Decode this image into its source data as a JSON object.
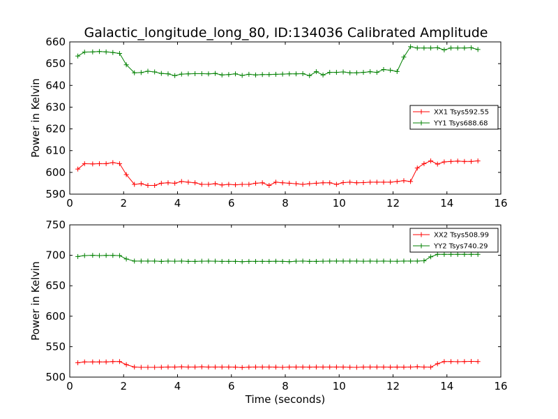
{
  "figure_title": "Galactic_longitude_long_80, ID:134036 Calibrated Amplitude",
  "colors": {
    "red": "#ff0000",
    "green": "#008000",
    "axis": "#000000",
    "background": "#ffffff"
  },
  "chart_data": [
    {
      "type": "line",
      "title": "Galactic_longitude_long_80, ID:134036 Calibrated Amplitude",
      "xlabel": "",
      "ylabel": "Power in Kelvin",
      "xlim": [
        0,
        16
      ],
      "ylim": [
        590,
        660
      ],
      "xticks": [
        0,
        2,
        4,
        6,
        8,
        10,
        12,
        14,
        16
      ],
      "yticks": [
        590,
        600,
        610,
        620,
        630,
        640,
        650,
        660
      ],
      "grid": false,
      "legend_position": "center-right",
      "x": [
        0.3,
        0.55,
        0.85,
        1.1,
        1.35,
        1.6,
        1.85,
        2.1,
        2.4,
        2.65,
        2.9,
        3.15,
        3.4,
        3.65,
        3.9,
        4.15,
        4.4,
        4.65,
        4.9,
        5.15,
        5.4,
        5.65,
        5.9,
        6.15,
        6.4,
        6.65,
        6.9,
        7.15,
        7.4,
        7.65,
        7.9,
        8.15,
        8.4,
        8.65,
        8.9,
        9.15,
        9.4,
        9.65,
        9.9,
        10.15,
        10.4,
        10.65,
        10.9,
        11.15,
        11.4,
        11.65,
        11.9,
        12.15,
        12.4,
        12.65,
        12.9,
        13.15,
        13.4,
        13.65,
        13.9,
        14.15,
        14.4,
        14.65,
        14.9,
        15.15
      ],
      "series": [
        {
          "name": "XX1 Tsys592.55",
          "color": "#ff0000",
          "values": [
            601.5,
            604.0,
            603.9,
            604.0,
            604.0,
            604.5,
            604.0,
            599.0,
            594.5,
            594.8,
            594.0,
            594.0,
            595.0,
            595.2,
            595.0,
            595.8,
            595.5,
            595.2,
            594.5,
            594.5,
            594.8,
            594.2,
            594.5,
            594.3,
            594.5,
            594.5,
            595.0,
            595.2,
            594.0,
            595.5,
            595.2,
            595.0,
            594.8,
            594.5,
            594.8,
            595.0,
            595.2,
            595.2,
            594.5,
            595.3,
            595.5,
            595.2,
            595.3,
            595.5,
            595.5,
            595.5,
            595.5,
            595.8,
            596.2,
            595.8,
            602.0,
            604.0,
            605.3,
            603.8,
            604.8,
            605.0,
            605.2,
            605.0,
            605.0,
            605.3
          ]
        },
        {
          "name": "YY1 Tsys688.68",
          "color": "#008000",
          "values": [
            653.5,
            655.3,
            655.4,
            655.6,
            655.4,
            655.1,
            654.7,
            649.5,
            645.8,
            645.9,
            646.5,
            646.2,
            645.5,
            645.3,
            644.5,
            645.2,
            645.3,
            645.4,
            645.4,
            645.3,
            645.5,
            644.8,
            645.0,
            645.3,
            644.6,
            645.1,
            644.8,
            645.0,
            645.0,
            645.1,
            645.2,
            645.3,
            645.3,
            645.4,
            644.5,
            646.3,
            644.8,
            646.0,
            646.0,
            646.2,
            645.8,
            645.8,
            646.0,
            646.3,
            646.0,
            647.3,
            647.0,
            646.4,
            653.0,
            657.8,
            657.2,
            657.2,
            657.2,
            657.3,
            656.3,
            657.2,
            657.2,
            657.2,
            657.3,
            656.5
          ]
        }
      ]
    },
    {
      "type": "line",
      "title": "",
      "xlabel": "Time (seconds)",
      "ylabel": "Power in Kelvin",
      "xlim": [
        0,
        16
      ],
      "ylim": [
        500,
        750
      ],
      "xticks": [
        0,
        2,
        4,
        6,
        8,
        10,
        12,
        14,
        16
      ],
      "yticks": [
        500,
        550,
        600,
        650,
        700,
        750
      ],
      "grid": false,
      "legend_position": "top-right",
      "x": [
        0.3,
        0.55,
        0.85,
        1.1,
        1.35,
        1.6,
        1.85,
        2.1,
        2.4,
        2.65,
        2.9,
        3.15,
        3.4,
        3.65,
        3.9,
        4.15,
        4.4,
        4.65,
        4.9,
        5.15,
        5.4,
        5.65,
        5.9,
        6.15,
        6.4,
        6.65,
        6.9,
        7.15,
        7.4,
        7.65,
        7.9,
        8.15,
        8.4,
        8.65,
        8.9,
        9.15,
        9.4,
        9.65,
        9.9,
        10.15,
        10.4,
        10.65,
        10.9,
        11.15,
        11.4,
        11.65,
        11.9,
        12.15,
        12.4,
        12.65,
        12.9,
        13.15,
        13.4,
        13.65,
        13.9,
        14.15,
        14.4,
        14.65,
        14.9,
        15.15
      ],
      "series": [
        {
          "name": "XX2 Tsys508.99",
          "color": "#ff0000",
          "values": [
            523.5,
            525.0,
            525.0,
            525.0,
            525.0,
            525.5,
            525.5,
            520.5,
            516.5,
            516.0,
            516.0,
            516.0,
            516.2,
            516.5,
            516.5,
            516.8,
            516.5,
            516.5,
            516.8,
            516.5,
            516.5,
            516.5,
            516.5,
            516.3,
            515.8,
            516.3,
            516.5,
            516.5,
            516.5,
            516.3,
            516.0,
            516.5,
            516.5,
            516.5,
            516.3,
            516.5,
            516.5,
            516.5,
            516.5,
            516.5,
            516.2,
            516.0,
            516.5,
            516.5,
            516.5,
            516.5,
            516.3,
            516.5,
            516.3,
            516.5,
            517.0,
            516.5,
            516.3,
            522.0,
            525.5,
            525.5,
            525.3,
            525.5,
            525.8,
            525.5
          ]
        },
        {
          "name": "YY2 Tsys740.29",
          "color": "#008000",
          "values": [
            698.0,
            699.5,
            700.0,
            699.5,
            699.8,
            699.8,
            699.5,
            694.0,
            690.5,
            690.5,
            690.5,
            690.5,
            690.0,
            690.5,
            690.3,
            690.5,
            690.0,
            690.0,
            690.3,
            690.5,
            690.3,
            690.0,
            690.0,
            690.0,
            689.5,
            690.0,
            690.0,
            690.0,
            690.0,
            690.2,
            690.0,
            689.5,
            690.3,
            690.5,
            690.0,
            690.0,
            690.3,
            690.5,
            690.5,
            690.5,
            690.5,
            690.5,
            690.3,
            690.5,
            690.3,
            690.5,
            690.3,
            690.2,
            690.5,
            690.5,
            690.5,
            691.0,
            697.5,
            701.5,
            701.5,
            701.5,
            701.5,
            701.5,
            701.5,
            701.5
          ]
        }
      ]
    }
  ]
}
